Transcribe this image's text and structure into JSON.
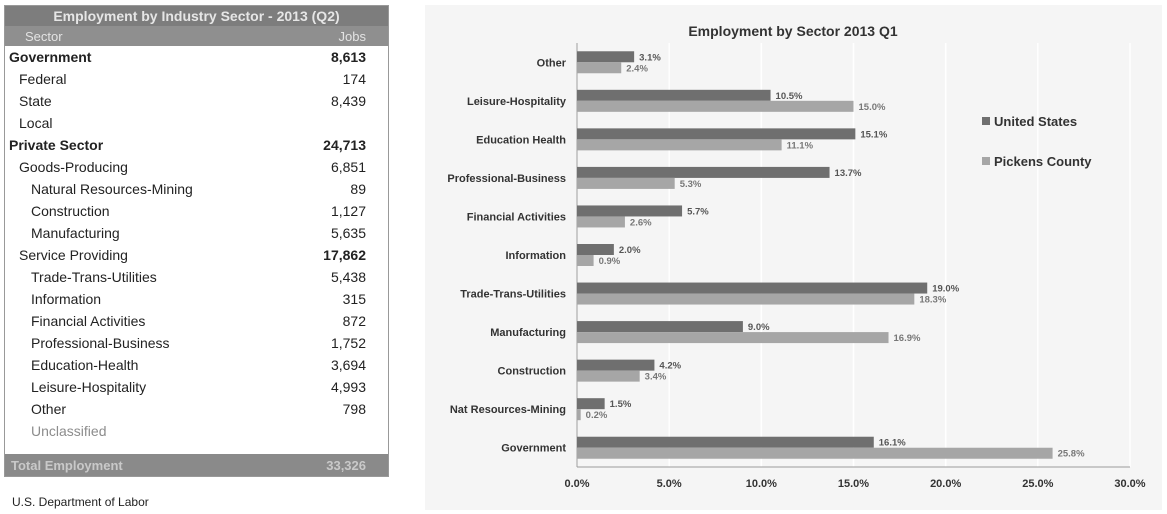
{
  "table": {
    "title": "Employment by Industry Sector - 2013 (Q2)",
    "col_sector": "Sector",
    "col_jobs": "Jobs",
    "rows": [
      {
        "label": "Government",
        "value": "8,613",
        "level": 0,
        "style": "bold"
      },
      {
        "label": "Federal",
        "value": "174",
        "level": 1,
        "style": ""
      },
      {
        "label": "State",
        "value": "8,439",
        "level": 1,
        "style": ""
      },
      {
        "label": "Local",
        "value": "",
        "level": 1,
        "style": ""
      },
      {
        "label": "Private Sector",
        "value": "24,713",
        "level": 0,
        "style": "bold"
      },
      {
        "label": "Goods-Producing",
        "value": "6,851",
        "level": 1,
        "style": ""
      },
      {
        "label": "Natural Resources-Mining",
        "value": "89",
        "level": 2,
        "style": ""
      },
      {
        "label": "Construction",
        "value": "1,127",
        "level": 2,
        "style": ""
      },
      {
        "label": "Manufacturing",
        "value": "5,635",
        "level": 2,
        "style": ""
      },
      {
        "label": "Service Providing",
        "value": "17,862",
        "level": 1,
        "style": "boldval"
      },
      {
        "label": "Trade-Trans-Utilities",
        "value": "5,438",
        "level": 2,
        "style": ""
      },
      {
        "label": "Information",
        "value": "315",
        "level": 2,
        "style": ""
      },
      {
        "label": "Financial Activities",
        "value": "872",
        "level": 2,
        "style": ""
      },
      {
        "label": "Professional-Business",
        "value": "1,752",
        "level": 2,
        "style": ""
      },
      {
        "label": "Education-Health",
        "value": "3,694",
        "level": 2,
        "style": ""
      },
      {
        "label": "Leisure-Hospitality",
        "value": "4,993",
        "level": 2,
        "style": ""
      },
      {
        "label": "Other",
        "value": "798",
        "level": 2,
        "style": ""
      },
      {
        "label": "Unclassified",
        "value": "",
        "level": 2,
        "style": "muted"
      }
    ],
    "footer_label": "Total Employment",
    "footer_value": "33,326"
  },
  "source_note": "U.S. Department of Labor",
  "colors": {
    "us": "#6f6f6f",
    "pickens": "#a6a6a6",
    "text": "#333333"
  },
  "chart_data": {
    "type": "bar",
    "orientation": "horizontal",
    "title": "Employment by Sector  2013 Q1",
    "categories": [
      "Other",
      "Leisure-Hospitality",
      "Education Health",
      "Professional-Business",
      "Financial Activities",
      "Information",
      "Trade-Trans-Utilities",
      "Manufacturing",
      "Construction",
      "Nat Resources-Mining",
      "Government"
    ],
    "series": [
      {
        "name": "United States",
        "values": [
          3.1,
          10.5,
          15.1,
          13.7,
          5.7,
          2.0,
          19.0,
          9.0,
          4.2,
          1.5,
          16.1
        ]
      },
      {
        "name": "Pickens County",
        "values": [
          2.4,
          15.0,
          11.1,
          5.3,
          2.6,
          0.9,
          18.3,
          16.9,
          3.4,
          0.2,
          25.8
        ]
      }
    ],
    "data_labels": [
      [
        "3.1%",
        "10.5%",
        "15.1%",
        "13.7%",
        "5.7%",
        "2.0%",
        "19.0%",
        "9.0%",
        "4.2%",
        "1.5%",
        "16.1%"
      ],
      [
        "2.4%",
        "15.0%",
        "11.1%",
        "5.3%",
        "2.6%",
        "0.9%",
        "18.3%",
        "16.9%",
        "3.4%",
        "0.2%",
        "25.8%"
      ]
    ],
    "xlim": [
      0,
      30
    ],
    "xticks": [
      0,
      5,
      10,
      15,
      20,
      25,
      30
    ],
    "xtick_labels": [
      "0.0%",
      "5.0%",
      "10.0%",
      "15.0%",
      "20.0%",
      "25.0%",
      "30.0%"
    ],
    "xlabel": "",
    "ylabel": "",
    "grid": "vertical",
    "legend_position": "right"
  }
}
